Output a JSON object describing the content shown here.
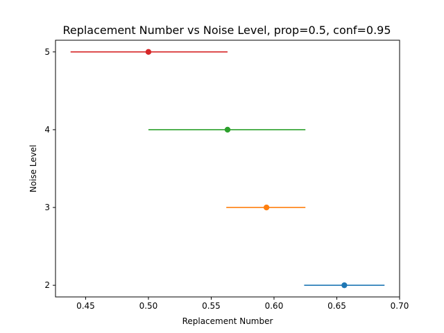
{
  "chart_data": {
    "type": "scatter",
    "title": "Replacement Number vs Noise Level, prop=0.5, conf=0.95",
    "xlabel": "Replacement Number",
    "ylabel": "Noise Level",
    "xlim": [
      0.426,
      0.7
    ],
    "ylim": [
      1.85,
      5.15
    ],
    "xticks": [
      0.45,
      0.5,
      0.55,
      0.6,
      0.65,
      0.7
    ],
    "xtick_labels": [
      "0.45",
      "0.50",
      "0.55",
      "0.60",
      "0.65",
      "0.70"
    ],
    "yticks": [
      2,
      3,
      4,
      5
    ],
    "ytick_labels": [
      "2",
      "3",
      "4",
      "5"
    ],
    "grid": false,
    "errorbars": "horizontal",
    "points": [
      {
        "y": 2,
        "x": 0.656,
        "xerr_low": 0.624,
        "xerr_high": 0.688,
        "color": "#1f77b4"
      },
      {
        "y": 3,
        "x": 0.594,
        "xerr_low": 0.562,
        "xerr_high": 0.625,
        "color": "#ff7f0e"
      },
      {
        "y": 4,
        "x": 0.563,
        "xerr_low": 0.5,
        "xerr_high": 0.625,
        "color": "#2ca02c"
      },
      {
        "y": 5,
        "x": 0.5,
        "xerr_low": 0.438,
        "xerr_high": 0.563,
        "color": "#d62728"
      }
    ]
  }
}
